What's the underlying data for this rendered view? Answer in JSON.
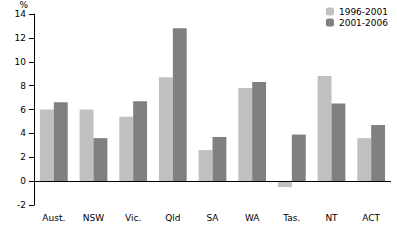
{
  "chart_data": {
    "type": "bar",
    "y_label": "%",
    "categories": [
      "Aust.",
      "NSW",
      "Vic.",
      "Qld",
      "SA",
      "WA",
      "Tas.",
      "NT",
      "ACT"
    ],
    "series": [
      {
        "name": "1996-2001",
        "color": "#c0c0c0",
        "values": [
          6.0,
          6.0,
          5.4,
          8.7,
          2.6,
          7.8,
          -0.5,
          8.8,
          3.6
        ]
      },
      {
        "name": "2001-2006",
        "color": "#808080",
        "values": [
          6.6,
          3.6,
          6.7,
          12.8,
          3.7,
          8.3,
          3.9,
          6.5,
          4.7
        ]
      }
    ],
    "ylim": [
      -2,
      14
    ],
    "yticks": [
      -2,
      0,
      2,
      4,
      6,
      8,
      10,
      12,
      14
    ],
    "grid": false,
    "legend": "top-right"
  }
}
